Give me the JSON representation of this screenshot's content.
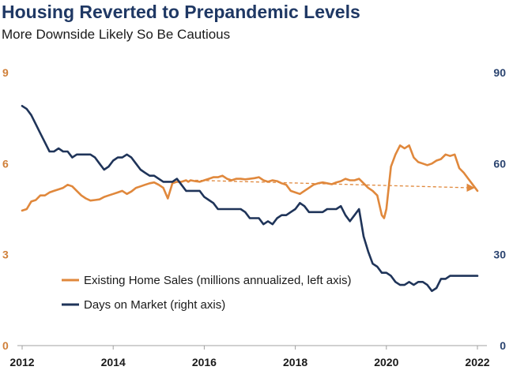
{
  "header": {
    "title": "Housing Reverted to Prepandemic Levels",
    "subtitle": "More Downside Likely So Be Cautious"
  },
  "colors": {
    "sales": "#e0883c",
    "days": "#1f3459",
    "left_axis": "#d0803a",
    "right_axis": "#2b4470",
    "axis_line": "#a0a0a0"
  },
  "chart_data": {
    "type": "line",
    "title": "Housing Reverted to Prepandemic Levels",
    "subtitle": "More Downside Likely So Be Cautious",
    "x_ticks": [
      "2012",
      "2014",
      "2016",
      "2018",
      "2020",
      "2022"
    ],
    "xlim": [
      2012.0,
      2022.0
    ],
    "y_left": {
      "ylim": [
        0,
        9
      ],
      "ticks": [
        "0",
        "3",
        "6",
        "9"
      ]
    },
    "y_right": {
      "ylim": [
        0,
        90
      ],
      "ticks": [
        "0",
        "30",
        "60",
        "90"
      ]
    },
    "legend_position": "lower-left",
    "grid": false,
    "series": [
      {
        "name": "Existing Home Sales (millions annualized, left axis)",
        "axis": "left",
        "color": "#e0883c",
        "x": [
          2012.0,
          2012.1,
          2012.2,
          2012.3,
          2012.4,
          2012.5,
          2012.6,
          2012.7,
          2012.8,
          2012.9,
          2013.0,
          2013.1,
          2013.2,
          2013.3,
          2013.4,
          2013.5,
          2013.6,
          2013.7,
          2013.8,
          2013.9,
          2014.0,
          2014.1,
          2014.2,
          2014.3,
          2014.4,
          2014.5,
          2014.6,
          2014.7,
          2014.8,
          2014.9,
          2015.0,
          2015.1,
          2015.2,
          2015.3,
          2015.4,
          2015.5,
          2015.6,
          2015.65,
          2015.7,
          2015.8,
          2015.9,
          2016.0,
          2016.1,
          2016.2,
          2016.3,
          2016.4,
          2016.5,
          2016.6,
          2016.7,
          2016.8,
          2016.9,
          2017.0,
          2017.1,
          2017.2,
          2017.3,
          2017.4,
          2017.5,
          2017.6,
          2017.7,
          2017.8,
          2017.9,
          2018.0,
          2018.1,
          2018.2,
          2018.3,
          2018.4,
          2018.5,
          2018.6,
          2018.7,
          2018.8,
          2018.9,
          2019.0,
          2019.1,
          2019.2,
          2019.3,
          2019.4,
          2019.5,
          2019.6,
          2019.7,
          2019.8,
          2019.9,
          2019.95,
          2020.0,
          2020.1,
          2020.2,
          2020.3,
          2020.4,
          2020.5,
          2020.6,
          2020.7,
          2020.8,
          2020.9,
          2021.0,
          2021.1,
          2021.2,
          2021.3,
          2021.4,
          2021.5,
          2021.6,
          2021.7,
          2021.8,
          2021.9,
          2022.0
        ],
        "y": [
          4.45,
          4.5,
          4.75,
          4.8,
          4.95,
          4.95,
          5.05,
          5.1,
          5.15,
          5.2,
          5.3,
          5.25,
          5.1,
          4.95,
          4.85,
          4.78,
          4.8,
          4.82,
          4.9,
          4.95,
          5.0,
          5.05,
          5.1,
          5.0,
          5.08,
          5.2,
          5.25,
          5.3,
          5.35,
          5.38,
          5.3,
          5.2,
          4.85,
          5.35,
          5.4,
          5.4,
          5.45,
          5.4,
          5.45,
          5.42,
          5.4,
          5.45,
          5.5,
          5.55,
          5.55,
          5.6,
          5.5,
          5.45,
          5.5,
          5.5,
          5.48,
          5.5,
          5.52,
          5.55,
          5.45,
          5.4,
          5.45,
          5.42,
          5.35,
          5.3,
          5.1,
          5.05,
          5.0,
          5.1,
          5.2,
          5.3,
          5.35,
          5.38,
          5.35,
          5.32,
          5.38,
          5.42,
          5.5,
          5.45,
          5.45,
          5.5,
          5.35,
          5.2,
          5.1,
          4.95,
          4.3,
          4.2,
          4.5,
          5.9,
          6.3,
          6.6,
          6.5,
          6.6,
          6.2,
          6.05,
          6.0,
          5.95,
          6.0,
          6.1,
          6.15,
          6.3,
          6.25,
          6.3,
          5.85,
          5.7,
          5.5,
          5.3,
          5.1
        ]
      },
      {
        "name": "Days on Market (right axis)",
        "axis": "right",
        "color": "#1f3459",
        "x": [
          2012.0,
          2012.1,
          2012.2,
          2012.3,
          2012.4,
          2012.5,
          2012.6,
          2012.7,
          2012.8,
          2012.9,
          2013.0,
          2013.1,
          2013.2,
          2013.3,
          2013.4,
          2013.5,
          2013.6,
          2013.7,
          2013.8,
          2013.9,
          2014.0,
          2014.1,
          2014.2,
          2014.3,
          2014.4,
          2014.5,
          2014.6,
          2014.7,
          2014.8,
          2014.9,
          2015.0,
          2015.1,
          2015.2,
          2015.3,
          2015.4,
          2015.5,
          2015.6,
          2015.7,
          2015.8,
          2015.9,
          2016.0,
          2016.1,
          2016.2,
          2016.3,
          2016.4,
          2016.5,
          2016.6,
          2016.7,
          2016.8,
          2016.9,
          2017.0,
          2017.1,
          2017.2,
          2017.3,
          2017.4,
          2017.5,
          2017.6,
          2017.7,
          2017.8,
          2017.9,
          2018.0,
          2018.1,
          2018.2,
          2018.3,
          2018.4,
          2018.5,
          2018.6,
          2018.7,
          2018.8,
          2018.9,
          2019.0,
          2019.1,
          2019.2,
          2019.3,
          2019.4,
          2019.5,
          2019.6,
          2019.7,
          2019.8,
          2019.9,
          2020.0,
          2020.1,
          2020.2,
          2020.3,
          2020.4,
          2020.5,
          2020.6,
          2020.7,
          2020.8,
          2020.9,
          2021.0,
          2021.1,
          2021.2,
          2021.3,
          2021.4,
          2021.5,
          2021.6,
          2021.7,
          2021.8,
          2021.9,
          2022.0
        ],
        "y": [
          79,
          78,
          76,
          73,
          70,
          67,
          64,
          64,
          65,
          64,
          64,
          62,
          63,
          63,
          63,
          63,
          62,
          60,
          58,
          59,
          61,
          62,
          62,
          63,
          62,
          60,
          58,
          57,
          56,
          56,
          55,
          54,
          54,
          54,
          55,
          53,
          51,
          51,
          51,
          51,
          49,
          48,
          47,
          45,
          45,
          45,
          45,
          45,
          45,
          44,
          42,
          42,
          42,
          40,
          41,
          40,
          42,
          43,
          43,
          44,
          45,
          47,
          46,
          44,
          44,
          44,
          44,
          45,
          45,
          45,
          46,
          43,
          41,
          43,
          45,
          36,
          31,
          27,
          26,
          24,
          24,
          23,
          21,
          20,
          20,
          21,
          20,
          21,
          21,
          20,
          18,
          19,
          22,
          22,
          23,
          23,
          23,
          23,
          23,
          23,
          23
        ],
        "x_note": "",
        "y_note": ""
      }
    ],
    "trend_arrow": {
      "from": [
        2015.8,
        5.45
      ],
      "to": [
        2021.9,
        5.2
      ]
    }
  }
}
